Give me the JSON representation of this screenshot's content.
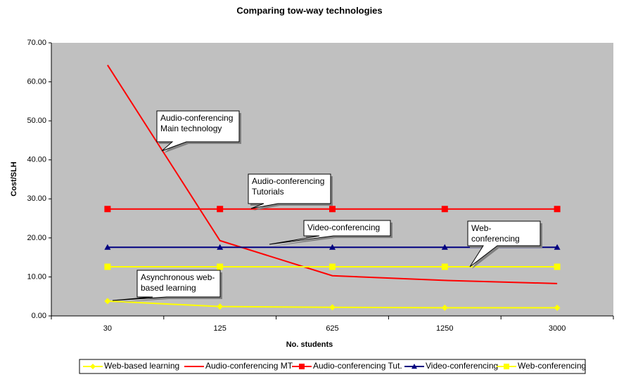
{
  "chart_data": {
    "type": "line",
    "title": "Comparing tow-way technologies",
    "x_label": "No. students",
    "y_label": "Cost/SLH",
    "categories": [
      "30",
      "125",
      "625",
      "1250",
      "3000"
    ],
    "ylim": [
      0,
      70
    ],
    "yticks": [
      {
        "value": 0,
        "label": "0.00"
      },
      {
        "value": 10,
        "label": "10.00"
      },
      {
        "value": 20,
        "label": "20.00"
      },
      {
        "value": 30,
        "label": "30.00"
      },
      {
        "value": 40,
        "label": "40.00"
      },
      {
        "value": 50,
        "label": "50.00"
      },
      {
        "value": 60,
        "label": "60.00"
      },
      {
        "value": 70,
        "label": "70.00"
      }
    ],
    "series": [
      {
        "name": "Web-based learning",
        "color": "#ffff00",
        "marker": "diamond",
        "values": [
          3.8,
          2.4,
          2.2,
          2.1,
          2.1
        ]
      },
      {
        "name": "Audio-conferencing MT",
        "color": "#ff0000",
        "marker": "none",
        "values": [
          64.3,
          19.3,
          10.3,
          9.1,
          8.3
        ]
      },
      {
        "name": "Audio-conferencing Tut.",
        "color": "#ff0000",
        "marker": "square",
        "values": [
          27.4,
          27.4,
          27.4,
          27.4,
          27.4
        ]
      },
      {
        "name": "Video-conferencing",
        "color": "#000080",
        "marker": "triangle",
        "values": [
          17.6,
          17.6,
          17.6,
          17.6,
          17.6
        ]
      },
      {
        "name": "Web-conferencing",
        "color": "#ffff00",
        "marker": "square",
        "values": [
          12.6,
          12.6,
          12.6,
          12.6,
          12.6
        ]
      }
    ],
    "annotations": [
      {
        "lines": [
          "Audio-conferencing",
          "Main technology"
        ]
      },
      {
        "lines": [
          "Audio-conferencing",
          "Tutorials"
        ]
      },
      {
        "lines": [
          "Video-conferencing"
        ]
      },
      {
        "lines": [
          "Web-",
          "conferencing"
        ]
      },
      {
        "lines": [
          "Asynchronous web-",
          "based learning"
        ]
      }
    ],
    "legend": "bottom"
  }
}
